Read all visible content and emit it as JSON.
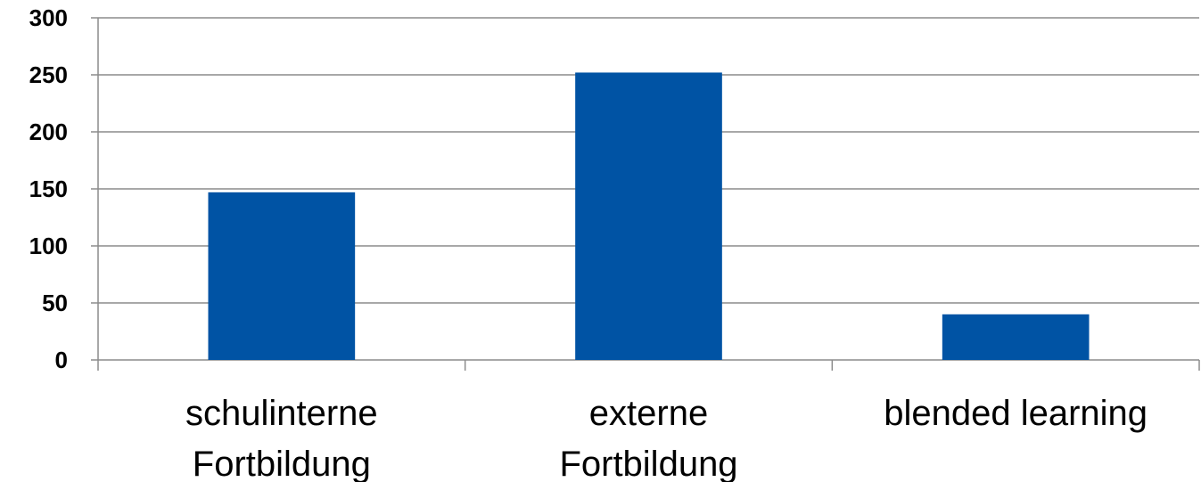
{
  "chart_data": {
    "type": "bar",
    "categories": [
      [
        "schulinterne",
        "Fortbildung"
      ],
      [
        "externe",
        "Fortbildung"
      ],
      [
        "blended learning"
      ]
    ],
    "values": [
      147,
      252,
      40
    ],
    "title": "",
    "xlabel": "",
    "ylabel": "",
    "ylim": [
      0,
      300
    ],
    "yticks": [
      "0",
      "50",
      "100",
      "150",
      "200",
      "250",
      "300"
    ],
    "grid": true,
    "legend": "none",
    "bar_color": "#0053A4",
    "gridline_color": "#8C8C8C",
    "axis_color": "#8C8C8C"
  }
}
